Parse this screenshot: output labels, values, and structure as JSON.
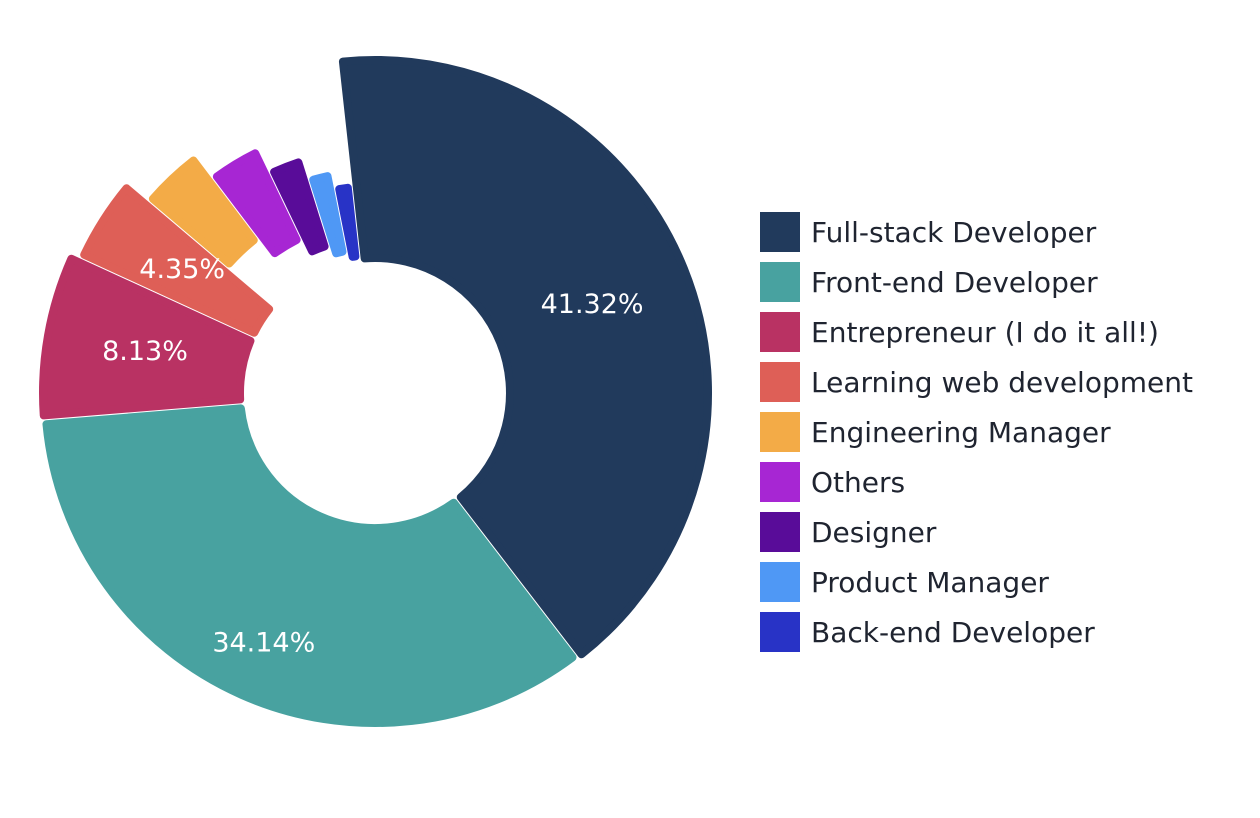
{
  "chart_data": {
    "type": "pie",
    "categories": [
      "Full-stack Developer",
      "Front-end Developer",
      "Entrepreneur (I do it all!)",
      "Learning web development",
      "Engineering Manager",
      "Others",
      "Designer",
      "Product Manager",
      "Back-end Developer"
    ],
    "values": [
      41.32,
      34.14,
      8.13,
      4.35,
      3.5,
      3.2,
      2.3,
      1.7,
      1.36
    ],
    "data_labels": [
      "41.32%",
      "34.14%",
      "8.13%",
      "4.35%",
      "",
      "",
      "",
      "",
      ""
    ],
    "colors": [
      "#213a5c",
      "#48a2a0",
      "#b93263",
      "#de5f57",
      "#f3ab47",
      "#a726d3",
      "#590c99",
      "#4f98f5",
      "#2833c6"
    ],
    "donut": true,
    "legend_position": "right",
    "title": ""
  }
}
